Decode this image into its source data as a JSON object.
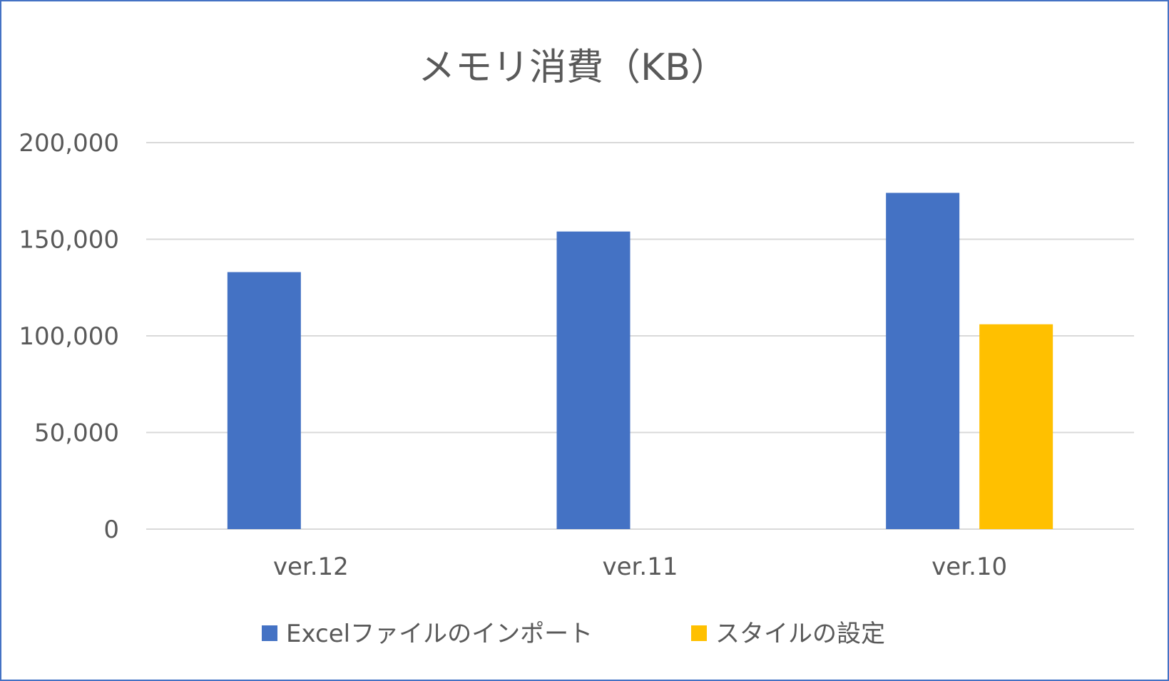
{
  "chart_data": {
    "type": "bar",
    "title": "メモリ消費（KB）",
    "categories": [
      "ver.12",
      "ver.11",
      "ver.10"
    ],
    "series": [
      {
        "name": "Excelファイルのインポート",
        "values": [
          133000,
          154000,
          174000
        ],
        "color": "#4472C4"
      },
      {
        "name": "スタイルの設定",
        "values": [
          null,
          null,
          106000
        ],
        "color": "#FFC000"
      }
    ],
    "ylim": [
      0,
      200000
    ],
    "yticks": [
      "0",
      "50,000",
      "100,000",
      "150,000",
      "200,000"
    ],
    "grid": true,
    "legend_position": "bottom"
  }
}
